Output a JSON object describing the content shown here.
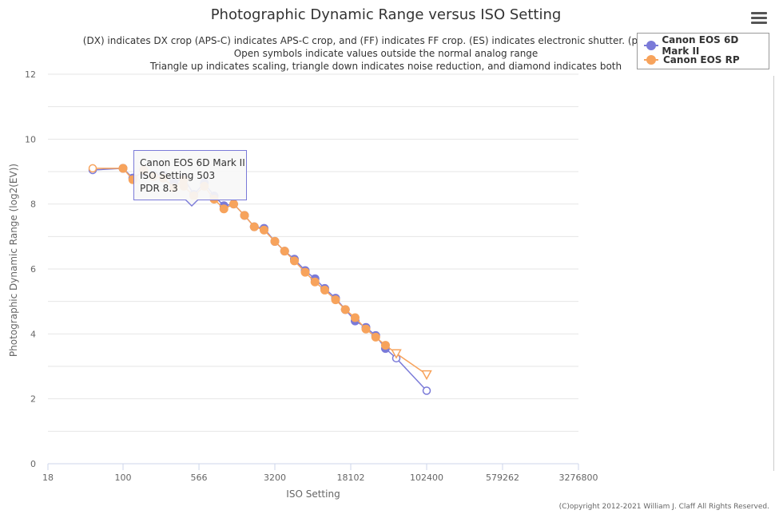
{
  "chart_data": {
    "type": "line",
    "title": "Photographic Dynamic Range versus ISO Setting",
    "subtitle_lines": [
      "(DX) indicates DX crop (APS-C) indicates APS-C crop, and (FF) indicates FF crop. (ES) indicates electronic shutter. (p) indicated",
      "Open symbols indicate values outside the normal analog range",
      "Triangle up indicates scaling, triangle down indicates noise reduction, and diamond indicates both"
    ],
    "xlabel": "ISO Setting",
    "ylabel": "Photographic Dynamic Range (log2(EV))",
    "x_scale": "log",
    "xlim": [
      18,
      3276800
    ],
    "ylim": [
      0,
      12
    ],
    "x_ticks": [
      "18",
      "100",
      "566",
      "3200",
      "18102",
      "102400",
      "579262",
      "3276800"
    ],
    "x_tick_values": [
      18,
      100,
      566,
      3200,
      18102,
      102400,
      579262,
      3276800
    ],
    "y_ticks": [
      "0",
      "2",
      "4",
      "6",
      "8",
      "10",
      "12"
    ],
    "y_tick_values": [
      0,
      2,
      4,
      6,
      8,
      10,
      12
    ],
    "grid": true,
    "legend": "top-right",
    "series": [
      {
        "name": "Canon EOS 6D Mark II",
        "color": "#7a7ad8",
        "points": [
          {
            "x": 50,
            "y": 9.05,
            "open": true,
            "marker": "circle"
          },
          {
            "x": 100,
            "y": 9.1,
            "marker": "circle"
          },
          {
            "x": 125,
            "y": 8.8,
            "marker": "circle"
          },
          {
            "x": 160,
            "y": 9.0,
            "marker": "circle"
          },
          {
            "x": 200,
            "y": 8.9,
            "marker": "circle"
          },
          {
            "x": 250,
            "y": 8.9,
            "marker": "circle"
          },
          {
            "x": 320,
            "y": 8.65,
            "marker": "circle"
          },
          {
            "x": 400,
            "y": 8.8,
            "marker": "circle"
          },
          {
            "x": 503,
            "y": 8.3,
            "marker": "circle"
          },
          {
            "x": 640,
            "y": 8.65,
            "marker": "circle"
          },
          {
            "x": 800,
            "y": 8.25,
            "marker": "circle"
          },
          {
            "x": 1000,
            "y": 7.95,
            "marker": "circle"
          },
          {
            "x": 1250,
            "y": 8.0,
            "marker": "circle"
          },
          {
            "x": 1600,
            "y": 7.65,
            "marker": "circle"
          },
          {
            "x": 2000,
            "y": 7.3,
            "marker": "circle"
          },
          {
            "x": 2500,
            "y": 7.25,
            "marker": "circle"
          },
          {
            "x": 3200,
            "y": 6.85,
            "marker": "circle"
          },
          {
            "x": 4000,
            "y": 6.55,
            "marker": "circle"
          },
          {
            "x": 5000,
            "y": 6.3,
            "marker": "circle"
          },
          {
            "x": 6400,
            "y": 5.95,
            "marker": "circle"
          },
          {
            "x": 8000,
            "y": 5.7,
            "marker": "circle"
          },
          {
            "x": 10000,
            "y": 5.4,
            "marker": "circle"
          },
          {
            "x": 12800,
            "y": 5.1,
            "marker": "circle"
          },
          {
            "x": 16000,
            "y": 4.75,
            "marker": "circle"
          },
          {
            "x": 20000,
            "y": 4.4,
            "marker": "circle"
          },
          {
            "x": 25600,
            "y": 4.2,
            "marker": "circle"
          },
          {
            "x": 32000,
            "y": 3.95,
            "marker": "circle"
          },
          {
            "x": 40000,
            "y": 3.55,
            "marker": "circle"
          },
          {
            "x": 51200,
            "y": 3.25,
            "open": true,
            "marker": "circle"
          },
          {
            "x": 102400,
            "y": 2.25,
            "open": true,
            "marker": "circle"
          }
        ]
      },
      {
        "name": "Canon EOS RP",
        "color": "#f7a35c",
        "points": [
          {
            "x": 50,
            "y": 9.1,
            "open": true,
            "marker": "circle"
          },
          {
            "x": 100,
            "y": 9.1,
            "marker": "circle"
          },
          {
            "x": 125,
            "y": 8.75,
            "marker": "circle"
          },
          {
            "x": 160,
            "y": 9.05,
            "marker": "circle"
          },
          {
            "x": 200,
            "y": 8.85,
            "marker": "circle"
          },
          {
            "x": 250,
            "y": 8.8,
            "marker": "circle"
          },
          {
            "x": 320,
            "y": 8.5,
            "marker": "circle"
          },
          {
            "x": 400,
            "y": 8.75,
            "marker": "circle"
          },
          {
            "x": 400,
            "y": 8.55,
            "marker": "circle"
          },
          {
            "x": 503,
            "y": 8.25,
            "marker": "circle"
          },
          {
            "x": 640,
            "y": 8.55,
            "marker": "circle"
          },
          {
            "x": 800,
            "y": 8.15,
            "marker": "circle"
          },
          {
            "x": 1000,
            "y": 7.85,
            "marker": "circle"
          },
          {
            "x": 1250,
            "y": 8.0,
            "marker": "circle"
          },
          {
            "x": 1600,
            "y": 7.65,
            "marker": "circle"
          },
          {
            "x": 2000,
            "y": 7.3,
            "marker": "circle"
          },
          {
            "x": 2500,
            "y": 7.2,
            "marker": "circle"
          },
          {
            "x": 3200,
            "y": 6.85,
            "marker": "circle"
          },
          {
            "x": 4000,
            "y": 6.55,
            "marker": "circle"
          },
          {
            "x": 5000,
            "y": 6.25,
            "marker": "circle"
          },
          {
            "x": 6400,
            "y": 5.9,
            "marker": "circle"
          },
          {
            "x": 8000,
            "y": 5.6,
            "marker": "circle"
          },
          {
            "x": 10000,
            "y": 5.35,
            "marker": "circle"
          },
          {
            "x": 12800,
            "y": 5.05,
            "marker": "circle"
          },
          {
            "x": 16000,
            "y": 4.75,
            "marker": "circle"
          },
          {
            "x": 20000,
            "y": 4.5,
            "marker": "circle"
          },
          {
            "x": 25600,
            "y": 4.15,
            "marker": "circle"
          },
          {
            "x": 32000,
            "y": 3.9,
            "marker": "circle"
          },
          {
            "x": 40000,
            "y": 3.65,
            "marker": "circle"
          },
          {
            "x": 51200,
            "y": 3.4,
            "open": true,
            "marker": "triangle-down"
          },
          {
            "x": 102400,
            "y": 2.75,
            "open": true,
            "marker": "triangle-down"
          }
        ]
      }
    ]
  },
  "tooltip": {
    "series": "Canon EOS 6D Mark II",
    "x_line": "ISO Setting 503",
    "y_line": "PDR 8.3"
  },
  "menu_icon": "hamburger-icon",
  "footer": "(C)opyright 2012-2021 William J. Claff All Rights Reserved."
}
